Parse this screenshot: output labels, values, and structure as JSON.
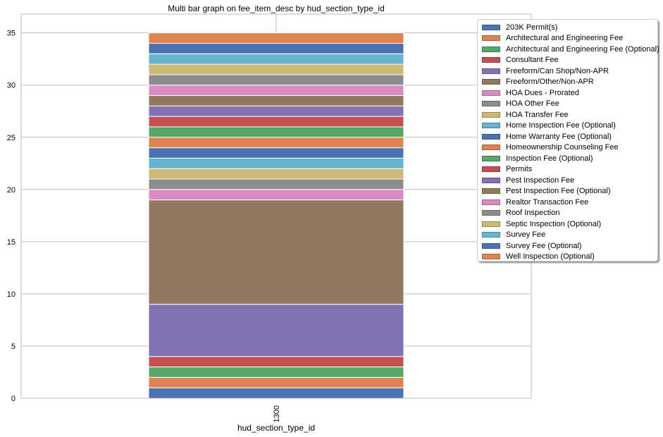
{
  "chart_data": {
    "type": "bar",
    "stacked": true,
    "title": "Multi bar graph on fee_item_desc by hud_section_type_id",
    "xlabel": "hud_section_type_id",
    "ylabel": "",
    "categories": [
      "1300"
    ],
    "ylim": [
      0,
      36.8
    ],
    "yticks": [
      0,
      5,
      10,
      15,
      20,
      25,
      30,
      35
    ],
    "grid": true,
    "legend_position": "top-right",
    "series": [
      {
        "name": "203K Permit(s)",
        "values": [
          1
        ],
        "color": "#4c72b0"
      },
      {
        "name": "Architectural and Engineering Fee",
        "values": [
          1
        ],
        "color": "#dd8452"
      },
      {
        "name": "Architectural and Engineering Fee (Optional)",
        "values": [
          1
        ],
        "color": "#55a868"
      },
      {
        "name": "Consultant Fee",
        "values": [
          1
        ],
        "color": "#c44e52"
      },
      {
        "name": "Freeform/Can Shop/Non-APR",
        "values": [
          5
        ],
        "color": "#8172b3"
      },
      {
        "name": "Freeform/Other/Non-APR",
        "values": [
          10
        ],
        "color": "#937860"
      },
      {
        "name": "HOA Dues - Prorated",
        "values": [
          1
        ],
        "color": "#da8bc3"
      },
      {
        "name": "HOA Other Fee",
        "values": [
          1
        ],
        "color": "#8c8c8c"
      },
      {
        "name": "HOA Transfer Fee",
        "values": [
          1
        ],
        "color": "#ccb974"
      },
      {
        "name": "Home Inspection Fee (Optional)",
        "values": [
          1
        ],
        "color": "#64b5cd"
      },
      {
        "name": "Home Warranty Fee (Optional)",
        "values": [
          1
        ],
        "color": "#4c72b0"
      },
      {
        "name": "Homeownership Counseling Fee",
        "values": [
          1
        ],
        "color": "#dd8452"
      },
      {
        "name": "Inspection Fee (Optional)",
        "values": [
          1
        ],
        "color": "#55a868"
      },
      {
        "name": "Permits",
        "values": [
          1
        ],
        "color": "#c44e52"
      },
      {
        "name": "Pest Inspection Fee",
        "values": [
          1
        ],
        "color": "#8172b3"
      },
      {
        "name": "Pest Inspection Fee (Optional)",
        "values": [
          1
        ],
        "color": "#937860"
      },
      {
        "name": "Realtor Transaction Fee",
        "values": [
          1
        ],
        "color": "#da8bc3"
      },
      {
        "name": "Roof Inspection",
        "values": [
          1
        ],
        "color": "#8c8c8c"
      },
      {
        "name": "Septic Inspection (Optional)",
        "values": [
          1
        ],
        "color": "#ccb974"
      },
      {
        "name": "Survey Fee",
        "values": [
          1
        ],
        "color": "#64b5cd"
      },
      {
        "name": "Survey Fee (Optional)",
        "values": [
          1
        ],
        "color": "#4c72b0"
      },
      {
        "name": "Well Inspection (Optional)",
        "values": [
          1
        ],
        "color": "#dd8452"
      }
    ]
  }
}
